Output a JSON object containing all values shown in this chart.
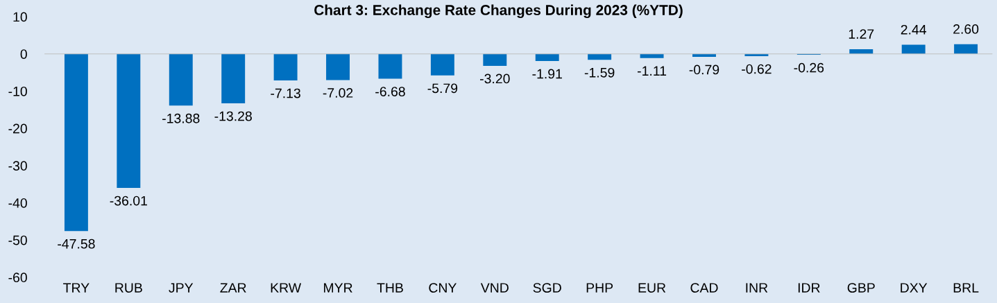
{
  "chart_data": {
    "type": "bar",
    "title": "Chart 3: Exchange Rate Changes During 2023 (%YTD)",
    "categories": [
      "TRY",
      "RUB",
      "JPY",
      "ZAR",
      "KRW",
      "MYR",
      "THB",
      "CNY",
      "VND",
      "SGD",
      "PHP",
      "EUR",
      "CAD",
      "INR",
      "IDR",
      "GBP",
      "DXY",
      "BRL"
    ],
    "values": [
      -47.58,
      -36.01,
      -13.88,
      -13.28,
      -7.13,
      -7.02,
      -6.68,
      -5.79,
      -3.2,
      -1.91,
      -1.59,
      -1.11,
      -0.79,
      -0.62,
      -0.26,
      1.27,
      2.44,
      2.6
    ],
    "value_labels": [
      "-47.58",
      "-36.01",
      "-13.88",
      "-13.28",
      "-7.13",
      "-7.02",
      "-6.68",
      "-5.79",
      "-3.20",
      "-1.91",
      "-1.59",
      "-1.11",
      "-0.79",
      "-0.62",
      "-0.26",
      "1.27",
      "2.44",
      "2.60"
    ],
    "color": "#0070c0",
    "ylim": [
      -60,
      10
    ],
    "yticks": [
      -60,
      -50,
      -40,
      -30,
      -20,
      -10,
      0,
      10
    ],
    "legend": false
  }
}
